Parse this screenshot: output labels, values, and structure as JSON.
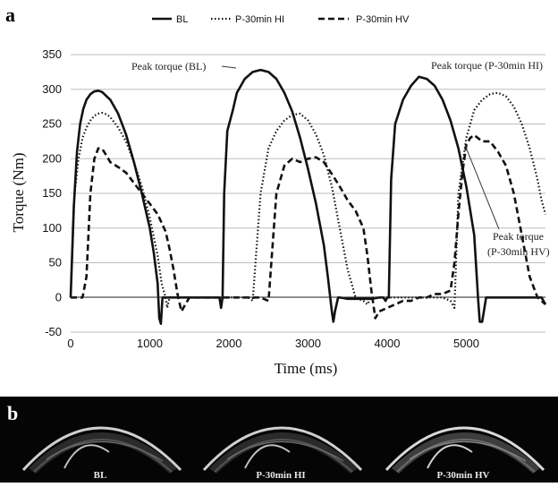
{
  "panel_a_letter": "a",
  "panel_b_letter": "b",
  "legend": [
    {
      "label": "BL",
      "dash": "solid"
    },
    {
      "label": "P-30min HI",
      "dash": "dotted"
    },
    {
      "label": "P-30min HV",
      "dash": "dashed"
    }
  ],
  "annotations": {
    "peak_bl": "Peak torque (BL)",
    "peak_hi": "Peak torque (P-30min HI)",
    "peak_hv_line1": "Peak torque",
    "peak_hv_line2": "(P-30min HV)"
  },
  "panel_b_captions": [
    "BL",
    "P-30min HI",
    "P-30min HV"
  ],
  "chart_data": {
    "type": "line",
    "xlabel": "Time (ms)",
    "ylabel": "Torque (Nm)",
    "xlim": [
      0,
      6000
    ],
    "ylim": [
      -50,
      350
    ],
    "xticks": [
      0,
      1000,
      2000,
      3000,
      4000,
      5000
    ],
    "yticks": [
      -50,
      0,
      50,
      100,
      150,
      200,
      250,
      300,
      350
    ],
    "grid": "horizontal",
    "legend_position": "top",
    "series": [
      {
        "name": "BL",
        "style": "solid",
        "x": [
          0,
          40,
          80,
          120,
          160,
          200,
          250,
          300,
          350,
          400,
          500,
          600,
          700,
          800,
          900,
          1000,
          1050,
          1100,
          1120,
          1140,
          1160,
          1200,
          1300,
          1400,
          1500,
          1600,
          1700,
          1800,
          1850,
          1880,
          1900,
          1920,
          1940,
          1980,
          2050,
          2100,
          2200,
          2300,
          2400,
          2500,
          2600,
          2700,
          2800,
          2900,
          3000,
          3100,
          3200,
          3250,
          3300,
          3320,
          3340,
          3380,
          3400,
          3500,
          3600,
          3700,
          3800,
          3900,
          3950,
          3980,
          4000,
          4020,
          4050,
          4100,
          4200,
          4300,
          4400,
          4500,
          4600,
          4700,
          4800,
          4900,
          5000,
          5100,
          5150,
          5170,
          5200,
          5250,
          5300,
          5400,
          5600,
          5800,
          5950,
          6000
        ],
        "y": [
          0,
          130,
          210,
          250,
          272,
          285,
          293,
          297,
          298,
          296,
          285,
          265,
          235,
          195,
          150,
          100,
          65,
          20,
          -30,
          -38,
          0,
          0,
          0,
          0,
          0,
          0,
          0,
          0,
          0,
          0,
          -15,
          0,
          150,
          240,
          270,
          295,
          315,
          325,
          328,
          325,
          315,
          295,
          268,
          230,
          185,
          135,
          75,
          30,
          -20,
          -35,
          -20,
          0,
          0,
          -2,
          -2,
          -2,
          -2,
          0,
          0,
          -5,
          0,
          0,
          170,
          250,
          285,
          305,
          318,
          315,
          305,
          285,
          255,
          215,
          160,
          90,
          -5,
          -35,
          -35,
          0,
          0,
          0,
          0,
          0,
          0,
          -10
        ]
      },
      {
        "name": "P-30min HI",
        "style": "dotted",
        "x": [
          0,
          50,
          100,
          150,
          200,
          250,
          300,
          350,
          400,
          450,
          500,
          600,
          700,
          800,
          900,
          1000,
          1100,
          1150,
          1200,
          1220,
          1250,
          1300,
          1400,
          1500,
          1600,
          1700,
          1800,
          1900,
          1950,
          2000,
          2100,
          2200,
          2250,
          2300,
          2400,
          2500,
          2600,
          2700,
          2800,
          2900,
          3000,
          3100,
          3200,
          3300,
          3400,
          3500,
          3600,
          3700,
          3750,
          3800,
          3900,
          4000,
          4100,
          4200,
          4300,
          4400,
          4500,
          4600,
          4700,
          4800,
          4850,
          4900,
          5000,
          5100,
          5200,
          5300,
          5400,
          5500,
          5600,
          5700,
          5800,
          5900,
          5950,
          6000
        ],
        "y": [
          0,
          150,
          200,
          230,
          245,
          255,
          262,
          265,
          266,
          264,
          260,
          245,
          225,
          195,
          160,
          115,
          60,
          20,
          0,
          -15,
          0,
          0,
          0,
          0,
          0,
          0,
          0,
          0,
          0,
          0,
          0,
          0,
          0,
          -5,
          150,
          215,
          240,
          255,
          263,
          265,
          255,
          235,
          205,
          160,
          100,
          40,
          0,
          -5,
          -10,
          0,
          0,
          0,
          0,
          0,
          0,
          0,
          0,
          0,
          0,
          -5,
          -15,
          150,
          230,
          270,
          285,
          293,
          295,
          290,
          275,
          250,
          215,
          170,
          140,
          120
        ]
      },
      {
        "name": "P-30min HV",
        "style": "dashed",
        "x": [
          0,
          50,
          100,
          150,
          200,
          250,
          300,
          350,
          400,
          450,
          500,
          600,
          700,
          800,
          900,
          1000,
          1100,
          1200,
          1250,
          1300,
          1350,
          1400,
          1450,
          1500,
          1600,
          1700,
          1800,
          1900,
          2000,
          2100,
          2200,
          2300,
          2400,
          2500,
          2600,
          2700,
          2800,
          2900,
          3000,
          3100,
          3200,
          3300,
          3400,
          3500,
          3600,
          3700,
          3750,
          3800,
          3850,
          3900,
          4000,
          4100,
          4200,
          4300,
          4400,
          4500,
          4600,
          4700,
          4800,
          4850,
          4900,
          4950,
          5000,
          5050,
          5100,
          5200,
          5300,
          5400,
          5500,
          5600,
          5700,
          5800,
          5900,
          6000
        ],
        "y": [
          0,
          0,
          0,
          0,
          30,
          150,
          200,
          215,
          214,
          205,
          195,
          188,
          180,
          165,
          150,
          135,
          120,
          95,
          70,
          40,
          5,
          -20,
          -10,
          0,
          0,
          0,
          0,
          0,
          0,
          0,
          0,
          0,
          0,
          -5,
          150,
          190,
          200,
          195,
          200,
          202,
          195,
          178,
          160,
          140,
          125,
          100,
          60,
          10,
          -30,
          -20,
          -15,
          -10,
          -5,
          -5,
          0,
          0,
          5,
          5,
          10,
          50,
          120,
          180,
          220,
          230,
          234,
          225,
          225,
          210,
          190,
          150,
          90,
          30,
          0,
          -10
        ]
      }
    ]
  }
}
